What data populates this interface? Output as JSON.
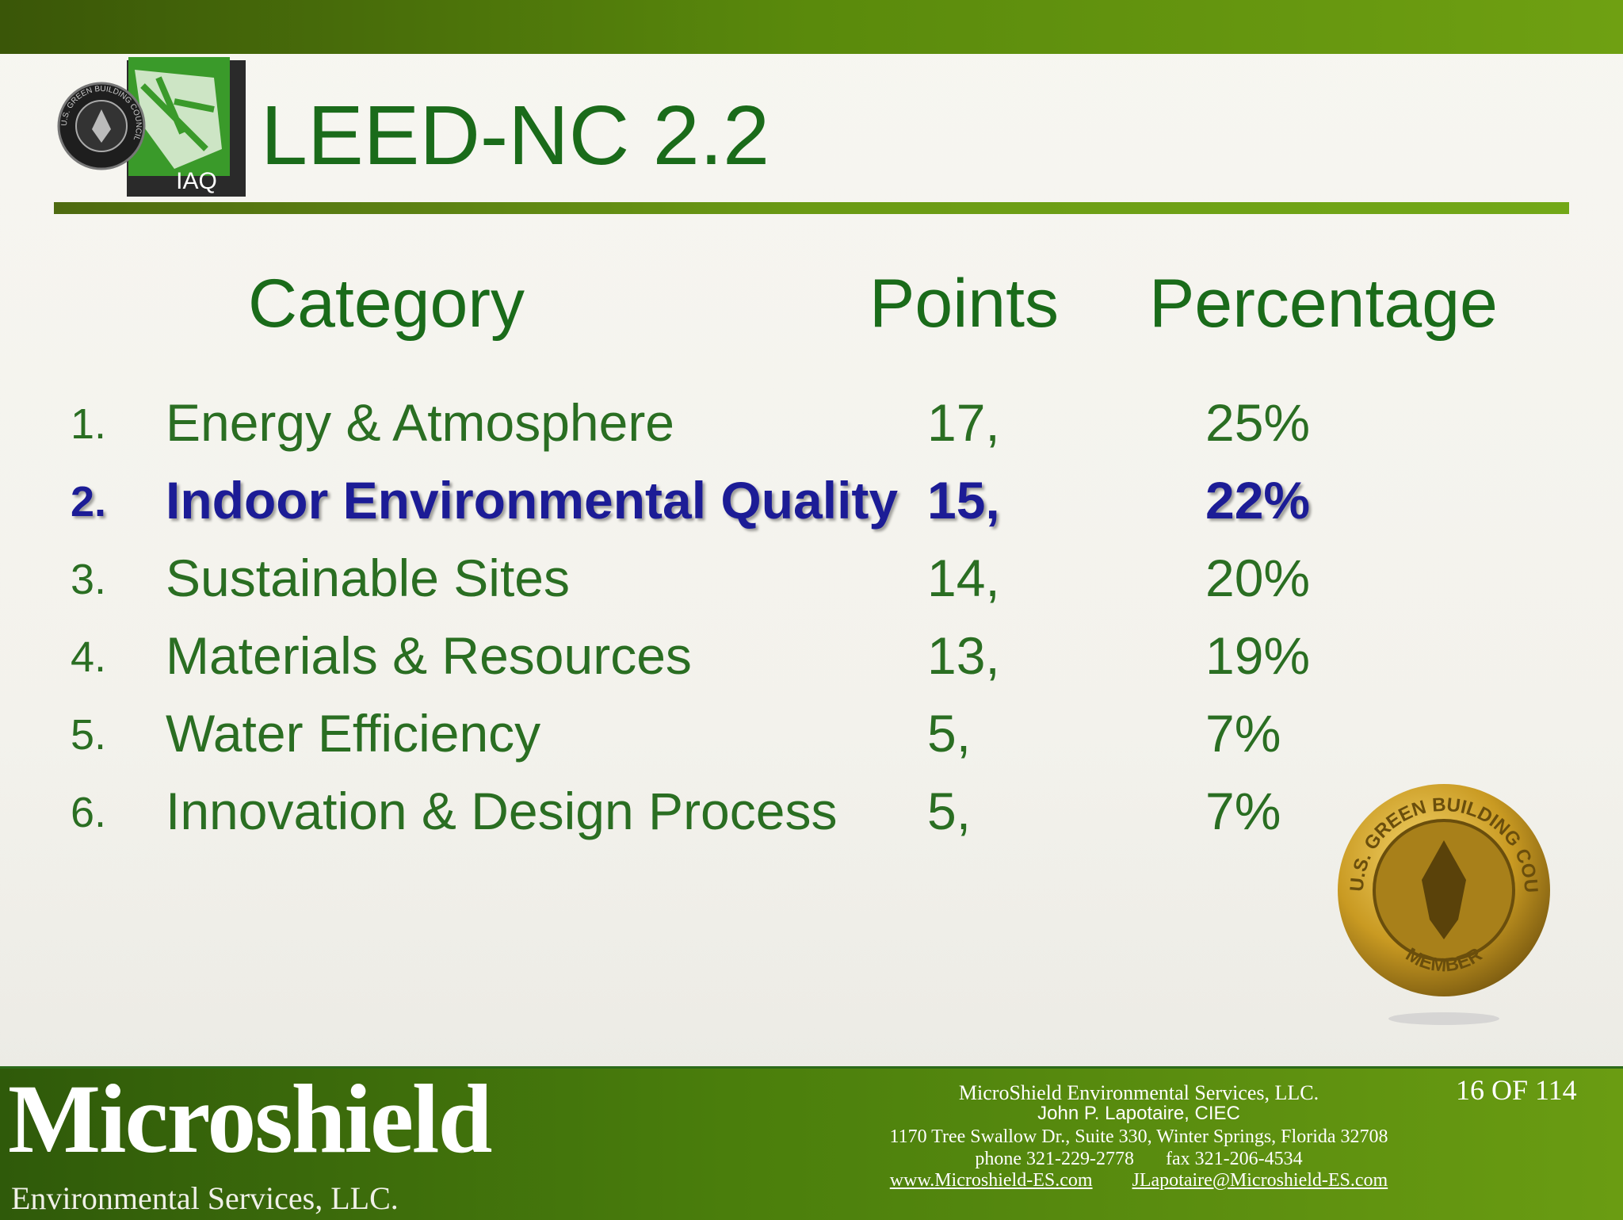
{
  "header": {
    "title": "LEED-NC 2.2",
    "logo_label": "IAQ",
    "logo_ring": "U.S. GREEN BUILDING COUNCIL"
  },
  "table": {
    "columns": [
      "Category",
      "Points",
      "Percentage"
    ],
    "rows": [
      [
        "1.",
        "Energy & Atmosphere",
        "17,",
        "25%"
      ],
      [
        "2.",
        "Indoor Environmental Quality",
        "15,",
        "22%"
      ],
      [
        "3.",
        "Sustainable Sites",
        "14,",
        "20%"
      ],
      [
        "4.",
        "Materials & Resources",
        "13,",
        "19%"
      ],
      [
        "5.",
        "Water Efficiency",
        "5,",
        "7%"
      ],
      [
        "6.",
        "Innovation & Design Process",
        "5,",
        "7%"
      ]
    ]
  },
  "badge": {
    "ring": "U.S. GREEN BUILDING COUNCIL",
    "label": "MEMBER"
  },
  "footer": {
    "brand": "Microshield",
    "brand_sub": "Environmental Services, LLC.",
    "company": "MicroShield Environmental Services, LLC.",
    "contact": "John P. Lapotaire, CIEC",
    "address": "1170 Tree Swallow Dr., Suite 330, Winter Springs, Florida 32708",
    "phone": "phone 321-229-2778",
    "fax": "fax 321-206-4534",
    "website": "www.Microshield-ES.com",
    "email": "JLapotaire@Microshield-ES.com",
    "page": "16 OF 114"
  }
}
